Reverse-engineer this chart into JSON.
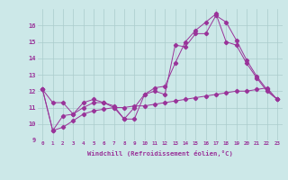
{
  "bg_color": "#cce8e8",
  "grid_color": "#aacccc",
  "line_color": "#993399",
  "xlim": [
    -0.5,
    23.5
  ],
  "ylim": [
    9,
    17
  ],
  "yticks": [
    9,
    10,
    11,
    12,
    13,
    14,
    15,
    16
  ],
  "xticks": [
    0,
    1,
    2,
    3,
    4,
    5,
    6,
    7,
    8,
    9,
    10,
    11,
    12,
    13,
    14,
    15,
    16,
    17,
    18,
    19,
    20,
    21,
    22,
    23
  ],
  "xlabel": "Windchill (Refroidissement éolien,°C)",
  "series1_x": [
    0,
    1,
    2,
    3,
    4,
    5,
    6,
    7,
    8,
    9,
    10,
    11,
    12,
    13,
    14,
    15,
    16,
    17,
    18,
    19,
    20,
    21,
    22,
    23
  ],
  "series1_y": [
    12.1,
    11.3,
    11.3,
    10.6,
    11.3,
    11.5,
    11.3,
    11.1,
    10.3,
    10.3,
    11.8,
    12.0,
    11.8,
    14.8,
    14.7,
    15.5,
    15.5,
    16.6,
    16.2,
    15.1,
    13.9,
    12.9,
    12.1,
    11.5
  ],
  "series2_x": [
    0,
    1,
    2,
    3,
    4,
    5,
    6,
    7,
    8,
    9,
    10,
    11,
    12,
    13,
    14,
    15,
    16,
    17,
    18,
    19,
    20,
    21,
    22,
    23
  ],
  "series2_y": [
    12.1,
    9.6,
    9.8,
    10.2,
    10.6,
    10.8,
    10.9,
    11.0,
    11.0,
    11.1,
    11.1,
    11.2,
    11.3,
    11.4,
    11.5,
    11.6,
    11.7,
    11.8,
    11.9,
    12.0,
    12.0,
    12.1,
    12.2,
    11.5
  ],
  "series3_x": [
    0,
    1,
    2,
    3,
    4,
    5,
    6,
    7,
    8,
    9,
    10,
    11,
    12,
    13,
    14,
    15,
    16,
    17,
    18,
    19,
    20,
    21,
    22,
    23
  ],
  "series3_y": [
    12.1,
    9.6,
    10.5,
    10.6,
    11.0,
    11.3,
    11.3,
    11.0,
    10.3,
    11.0,
    11.8,
    12.2,
    12.3,
    13.7,
    15.0,
    15.7,
    16.2,
    16.7,
    15.0,
    14.8,
    13.7,
    12.8,
    12.0,
    11.5
  ],
  "title_color": "#993399",
  "spine_color": "#993399"
}
